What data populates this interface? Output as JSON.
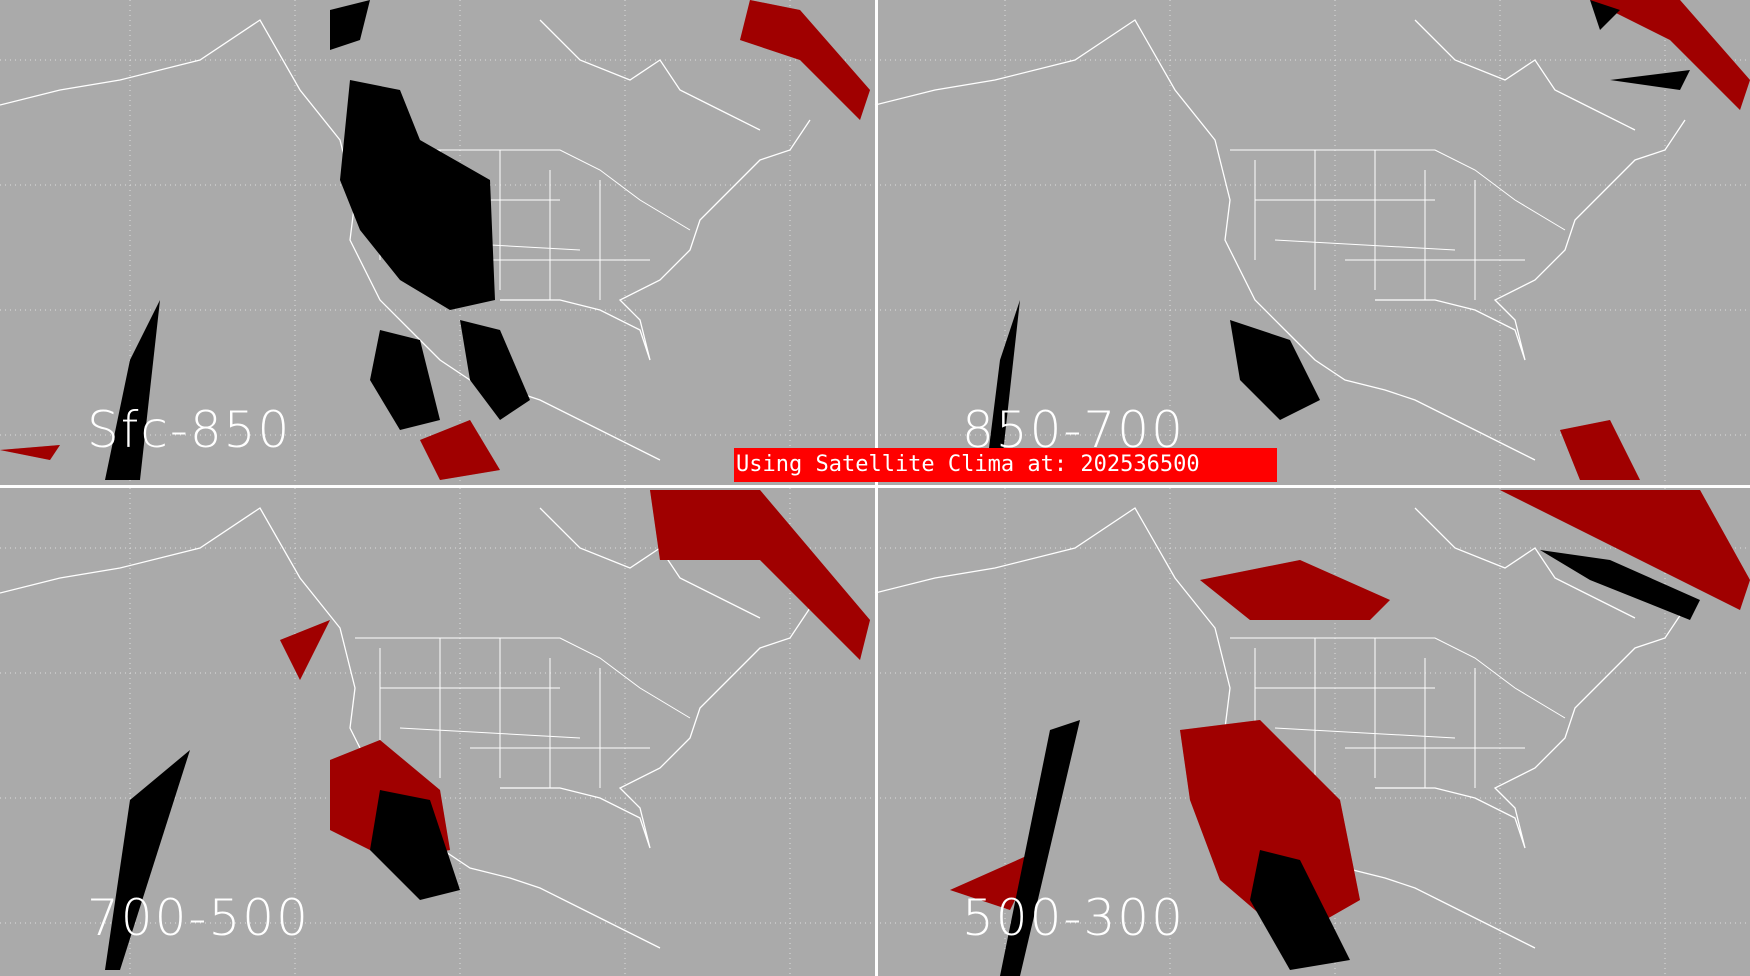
{
  "panels": [
    {
      "label": "Sfc-850"
    },
    {
      "label": "850-700"
    },
    {
      "label": "700-500"
    },
    {
      "label": "500-300"
    }
  ],
  "banner": {
    "text": "Using Satellite Clima at: 202536500",
    "color": "#ff0000"
  },
  "colors": {
    "background": "#aaaaaa",
    "outline": "#ffffff",
    "level1": "#000000",
    "level2": "#a00000",
    "level3": "#b07070",
    "level4": "#ffaaaa"
  }
}
